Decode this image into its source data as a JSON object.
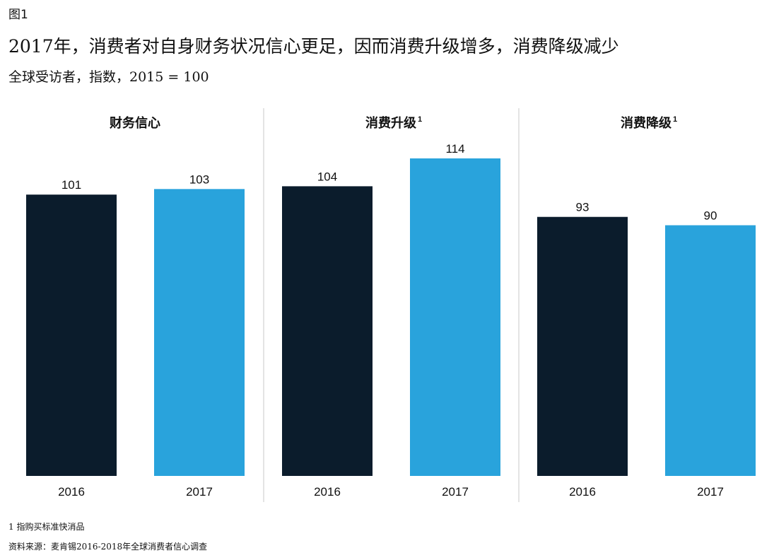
{
  "figure_label": "图1",
  "title": "2017年，消费者对自身财务状况信心更足，因而消费升级增多，消费降级减少",
  "subtitle": "全球受访者，指数，2015 = 100",
  "footnotes": [
    "1 指购买标准快消品",
    "资料来源：麦肯锡2016-2018年全球消费者信心调查"
  ],
  "colors": {
    "y2016": "#0b1c2c",
    "y2017": "#29a3dc",
    "divider": "#c8c8c8"
  },
  "chart_data": {
    "type": "bar",
    "categories": [
      "2016",
      "2017"
    ],
    "panels": [
      {
        "title": "财务信心",
        "superscript": "",
        "values": [
          101,
          103
        ]
      },
      {
        "title": "消费升级",
        "superscript": "1",
        "values": [
          104,
          114
        ]
      },
      {
        "title": "消费降级",
        "superscript": "1",
        "values": [
          93,
          90
        ]
      }
    ],
    "ylim": [
      0,
      114
    ],
    "grid": false,
    "legend": "none"
  }
}
